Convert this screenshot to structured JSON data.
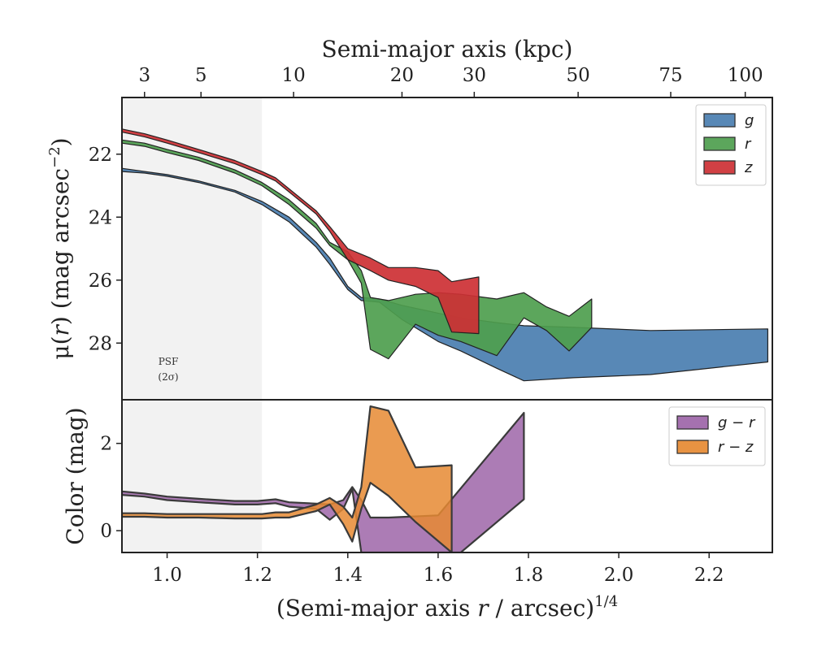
{
  "colors": {
    "g": "#4a7eb0",
    "r": "#4e9e4e",
    "z": "#cd3034",
    "g_minus_r": "#9d65a8",
    "r_minus_z": "#e68a32",
    "psf_shade": "#f2f2f2",
    "frame": "#222222"
  },
  "chart_data": [
    {
      "type": "area",
      "panel": "surface-brightness",
      "xlabel": "(Semi-major axis r / arcsec)^1/4",
      "ylabel": "μ(r) (mag arcsec^−2)",
      "top_axis": {
        "label": "Semi-major axis (kpc)",
        "ticks": [
          {
            "label": "3",
            "x": 0.95
          },
          {
            "label": "5",
            "x": 1.075
          },
          {
            "label": "10",
            "x": 1.28
          },
          {
            "label": "20",
            "x": 1.52
          },
          {
            "label": "30",
            "x": 1.68
          },
          {
            "label": "50",
            "x": 1.91
          },
          {
            "label": "75",
            "x": 2.115
          },
          {
            "label": "100",
            "x": 2.28
          }
        ]
      },
      "xlim": [
        0.9,
        2.34
      ],
      "ylim": [
        20.2,
        29.8
      ],
      "y_inverted": true,
      "yticks": [
        22,
        24,
        26,
        28
      ],
      "psf_region": {
        "x": [
          0.9,
          1.21
        ],
        "label_line1": "PSF",
        "label_line2": "(2σ)"
      },
      "legend": {
        "placement": "top-right",
        "entries": [
          "g",
          "r",
          "z"
        ]
      },
      "series": [
        {
          "name": "g",
          "color_key": "g",
          "upper": [
            [
              0.9,
              22.45
            ],
            [
              0.95,
              22.55
            ],
            [
              1.0,
              22.65
            ],
            [
              1.07,
              22.85
            ],
            [
              1.15,
              23.15
            ],
            [
              1.21,
              23.5
            ],
            [
              1.27,
              24.0
            ],
            [
              1.33,
              24.8
            ],
            [
              1.36,
              25.3
            ],
            [
              1.4,
              26.2
            ],
            [
              1.43,
              26.55
            ],
            [
              1.47,
              26.6
            ],
            [
              1.52,
              26.8
            ],
            [
              1.6,
              27.05
            ],
            [
              1.65,
              27.2
            ],
            [
              1.73,
              27.35
            ],
            [
              1.79,
              27.45
            ],
            [
              1.9,
              27.5
            ],
            [
              2.07,
              27.6
            ],
            [
              2.33,
              27.55
            ]
          ],
          "lower": [
            [
              0.9,
              22.55
            ],
            [
              0.95,
              22.6
            ],
            [
              1.0,
              22.7
            ],
            [
              1.07,
              22.9
            ],
            [
              1.15,
              23.2
            ],
            [
              1.21,
              23.6
            ],
            [
              1.27,
              24.15
            ],
            [
              1.33,
              24.95
            ],
            [
              1.36,
              25.5
            ],
            [
              1.4,
              26.3
            ],
            [
              1.43,
              26.65
            ],
            [
              1.47,
              26.7
            ],
            [
              1.52,
              27.25
            ],
            [
              1.6,
              27.95
            ],
            [
              1.65,
              28.25
            ],
            [
              1.73,
              28.8
            ],
            [
              1.79,
              29.2
            ],
            [
              1.9,
              29.1
            ],
            [
              2.07,
              29.0
            ],
            [
              2.33,
              28.6
            ]
          ]
        },
        {
          "name": "r",
          "color_key": "r",
          "upper": [
            [
              0.9,
              21.55
            ],
            [
              0.95,
              21.65
            ],
            [
              1.0,
              21.85
            ],
            [
              1.07,
              22.1
            ],
            [
              1.15,
              22.5
            ],
            [
              1.21,
              22.9
            ],
            [
              1.27,
              23.45
            ],
            [
              1.33,
              24.2
            ],
            [
              1.36,
              24.8
            ],
            [
              1.4,
              25.1
            ],
            [
              1.43,
              25.7
            ],
            [
              1.45,
              26.55
            ],
            [
              1.49,
              26.65
            ],
            [
              1.55,
              26.45
            ],
            [
              1.6,
              26.4
            ],
            [
              1.65,
              26.45
            ],
            [
              1.73,
              26.6
            ],
            [
              1.79,
              26.4
            ],
            [
              1.84,
              26.85
            ],
            [
              1.89,
              27.15
            ],
            [
              1.94,
              26.6
            ]
          ],
          "lower": [
            [
              0.9,
              21.65
            ],
            [
              0.95,
              21.75
            ],
            [
              1.0,
              21.95
            ],
            [
              1.07,
              22.2
            ],
            [
              1.15,
              22.6
            ],
            [
              1.21,
              23.0
            ],
            [
              1.27,
              23.6
            ],
            [
              1.33,
              24.35
            ],
            [
              1.36,
              24.9
            ],
            [
              1.4,
              25.35
            ],
            [
              1.43,
              26.1
            ],
            [
              1.45,
              28.2
            ],
            [
              1.49,
              28.5
            ],
            [
              1.55,
              27.4
            ],
            [
              1.6,
              27.75
            ],
            [
              1.65,
              27.95
            ],
            [
              1.73,
              28.4
            ],
            [
              1.79,
              27.2
            ],
            [
              1.84,
              27.6
            ],
            [
              1.89,
              28.25
            ],
            [
              1.94,
              27.5
            ]
          ]
        },
        {
          "name": "z",
          "color_key": "z",
          "upper": [
            [
              0.9,
              21.2
            ],
            [
              0.95,
              21.35
            ],
            [
              1.0,
              21.55
            ],
            [
              1.07,
              21.85
            ],
            [
              1.15,
              22.2
            ],
            [
              1.21,
              22.55
            ],
            [
              1.24,
              22.75
            ],
            [
              1.33,
              23.8
            ],
            [
              1.36,
              24.3
            ],
            [
              1.4,
              25.0
            ],
            [
              1.45,
              25.3
            ],
            [
              1.49,
              25.6
            ],
            [
              1.55,
              25.6
            ],
            [
              1.6,
              25.7
            ],
            [
              1.63,
              26.05
            ],
            [
              1.69,
              25.9
            ]
          ],
          "lower": [
            [
              0.9,
              21.3
            ],
            [
              0.95,
              21.45
            ],
            [
              1.0,
              21.65
            ],
            [
              1.07,
              21.95
            ],
            [
              1.15,
              22.3
            ],
            [
              1.21,
              22.65
            ],
            [
              1.24,
              22.85
            ],
            [
              1.33,
              23.9
            ],
            [
              1.36,
              24.45
            ],
            [
              1.4,
              25.35
            ],
            [
              1.45,
              25.7
            ],
            [
              1.49,
              26.0
            ],
            [
              1.55,
              26.2
            ],
            [
              1.6,
              26.55
            ],
            [
              1.63,
              27.65
            ],
            [
              1.69,
              27.7
            ]
          ]
        }
      ]
    },
    {
      "type": "area",
      "panel": "color",
      "xlabel": "(Semi-major axis r / arcsec)^1/4",
      "ylabel": "Color (mag)",
      "xlim": [
        0.9,
        2.34
      ],
      "ylim": [
        -0.5,
        3.0
      ],
      "xticks": [
        1.0,
        1.2,
        1.4,
        1.6,
        1.8,
        2.0,
        2.2
      ],
      "yticks": [
        0,
        2
      ],
      "psf_region": {
        "x": [
          0.9,
          1.21
        ]
      },
      "legend": {
        "placement": "top-right",
        "entries": [
          "g − r",
          "r − z"
        ]
      },
      "series": [
        {
          "name": "g − r",
          "color_key": "g_minus_r",
          "upper": [
            [
              0.9,
              0.9
            ],
            [
              0.95,
              0.85
            ],
            [
              1.0,
              0.78
            ],
            [
              1.07,
              0.73
            ],
            [
              1.15,
              0.68
            ],
            [
              1.2,
              0.68
            ],
            [
              1.24,
              0.72
            ],
            [
              1.27,
              0.65
            ],
            [
              1.33,
              0.62
            ],
            [
              1.36,
              0.6
            ],
            [
              1.39,
              0.7
            ],
            [
              1.41,
              1.0
            ],
            [
              1.43,
              0.7
            ],
            [
              1.45,
              0.3
            ],
            [
              1.49,
              0.3
            ],
            [
              1.6,
              0.35
            ],
            [
              1.79,
              2.7
            ]
          ],
          "lower": [
            [
              0.9,
              0.82
            ],
            [
              0.95,
              0.78
            ],
            [
              1.0,
              0.7
            ],
            [
              1.07,
              0.65
            ],
            [
              1.15,
              0.6
            ],
            [
              1.2,
              0.6
            ],
            [
              1.24,
              0.63
            ],
            [
              1.27,
              0.55
            ],
            [
              1.33,
              0.5
            ],
            [
              1.36,
              0.25
            ],
            [
              1.39,
              0.5
            ],
            [
              1.41,
              0.95
            ],
            [
              1.43,
              -0.5
            ],
            [
              1.49,
              -0.5
            ],
            [
              1.6,
              -0.5
            ],
            [
              1.65,
              -0.5
            ],
            [
              1.79,
              0.72
            ]
          ]
        },
        {
          "name": "r − z",
          "color_key": "r_minus_z",
          "upper": [
            [
              0.9,
              0.4
            ],
            [
              0.95,
              0.4
            ],
            [
              1.0,
              0.38
            ],
            [
              1.07,
              0.38
            ],
            [
              1.15,
              0.38
            ],
            [
              1.21,
              0.38
            ],
            [
              1.24,
              0.42
            ],
            [
              1.27,
              0.42
            ],
            [
              1.33,
              0.6
            ],
            [
              1.36,
              0.75
            ],
            [
              1.39,
              0.55
            ],
            [
              1.41,
              0.3
            ],
            [
              1.43,
              1.0
            ],
            [
              1.45,
              2.85
            ],
            [
              1.49,
              2.75
            ],
            [
              1.55,
              1.45
            ],
            [
              1.63,
              1.5
            ]
          ],
          "lower": [
            [
              0.9,
              0.32
            ],
            [
              0.95,
              0.32
            ],
            [
              1.0,
              0.3
            ],
            [
              1.07,
              0.3
            ],
            [
              1.15,
              0.28
            ],
            [
              1.21,
              0.28
            ],
            [
              1.24,
              0.3
            ],
            [
              1.27,
              0.3
            ],
            [
              1.33,
              0.45
            ],
            [
              1.36,
              0.6
            ],
            [
              1.39,
              0.15
            ],
            [
              1.41,
              -0.25
            ],
            [
              1.43,
              0.5
            ],
            [
              1.45,
              1.1
            ],
            [
              1.49,
              0.8
            ],
            [
              1.55,
              0.2
            ],
            [
              1.63,
              -0.5
            ]
          ]
        }
      ]
    }
  ],
  "text": {
    "top_axis_title": "Semi-major axis (kpc)",
    "top_ylabel_prefix": "μ(",
    "top_ylabel_r": "r",
    "top_ylabel_suffix": ") (mag arcsec",
    "top_ylabel_exp": "−2",
    "top_ylabel_close": ")",
    "bottom_ylabel": "Color (mag)",
    "xlabel_prefix": "(Semi-major axis ",
    "xlabel_r": "r",
    "xlabel_suffix": " / arcsec)",
    "xlabel_exp": "1/4",
    "psf_line1": "PSF",
    "psf_line2": "(2σ)",
    "legend_top": [
      "g",
      "r",
      "z"
    ],
    "legend_bottom": [
      "g − r",
      "r − z"
    ]
  }
}
